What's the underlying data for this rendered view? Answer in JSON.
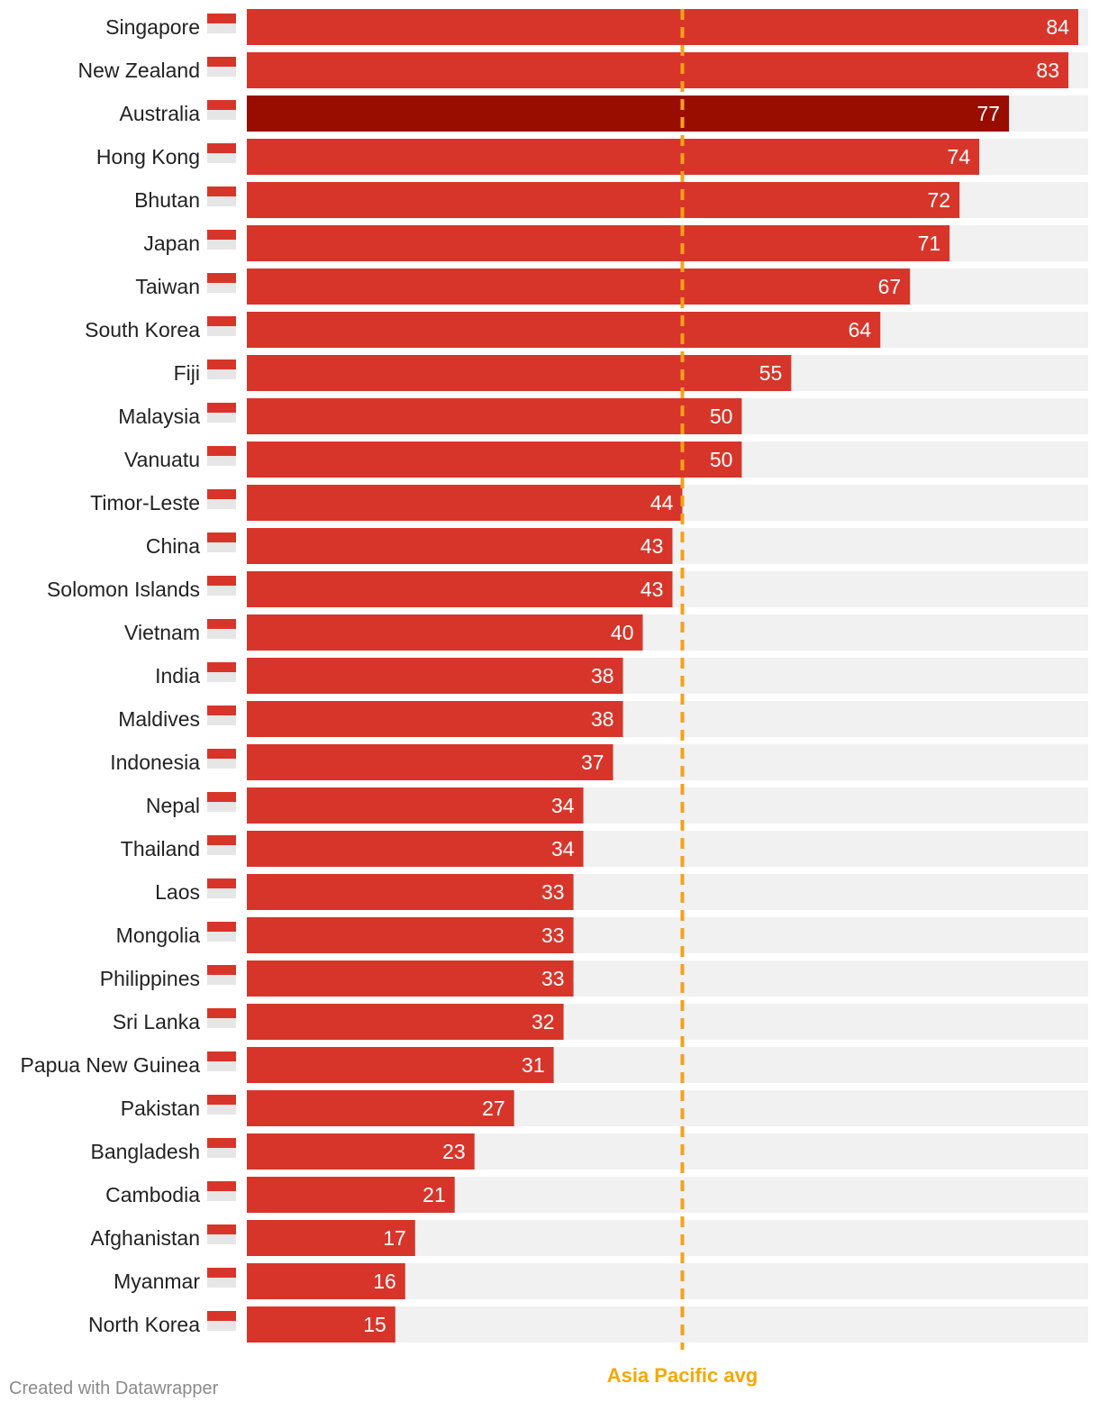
{
  "chart_data": {
    "type": "bar",
    "orientation": "horizontal",
    "xlim": [
      0,
      85
    ],
    "categories": [
      "Singapore",
      "New Zealand",
      "Australia",
      "Hong Kong",
      "Bhutan",
      "Japan",
      "Taiwan",
      "South Korea",
      "Fiji",
      "Malaysia",
      "Vanuatu",
      "Timor-Leste",
      "China",
      "Solomon Islands",
      "Vietnam",
      "India",
      "Maldives",
      "Indonesia",
      "Nepal",
      "Thailand",
      "Laos",
      "Mongolia",
      "Philippines",
      "Sri Lanka",
      "Papua New Guinea",
      "Pakistan",
      "Bangladesh",
      "Cambodia",
      "Afghanistan",
      "Myanmar",
      "North Korea"
    ],
    "flags": [
      "flag-singapore-icon",
      "flag-new-zealand-icon",
      "flag-australia-icon",
      "flag-hong-kong-icon",
      "flag-bhutan-icon",
      "flag-japan-icon",
      "flag-taiwan-icon",
      "flag-south-korea-icon",
      "flag-fiji-icon",
      "flag-malaysia-icon",
      "flag-vanuatu-icon",
      "flag-timor-leste-icon",
      "flag-china-icon",
      "flag-solomon-islands-icon",
      "flag-vietnam-icon",
      "flag-india-icon",
      "flag-maldives-icon",
      "flag-indonesia-icon",
      "flag-nepal-icon",
      "flag-thailand-icon",
      "flag-laos-icon",
      "flag-mongolia-icon",
      "flag-philippines-icon",
      "flag-sri-lanka-icon",
      "flag-papua-new-guinea-icon",
      "flag-pakistan-icon",
      "flag-bangladesh-icon",
      "flag-cambodia-icon",
      "flag-afghanistan-icon",
      "flag-myanmar-icon",
      "flag-north-korea-icon"
    ],
    "values": [
      84,
      83,
      77,
      74,
      72,
      71,
      67,
      64,
      55,
      50,
      50,
      44,
      43,
      43,
      40,
      38,
      38,
      37,
      34,
      34,
      33,
      33,
      33,
      32,
      31,
      27,
      23,
      21,
      17,
      16,
      15
    ],
    "highlight": "Australia",
    "reference_line": {
      "value": 44,
      "label": "Asia Pacific avg"
    },
    "colors": {
      "bar": "#d8352a",
      "highlight": "#990c00",
      "background_track": "#f1f1f1",
      "reference": "#f7a11a",
      "reference_label": "#f6a800"
    }
  },
  "footer": {
    "credit": "Created with Datawrapper"
  }
}
